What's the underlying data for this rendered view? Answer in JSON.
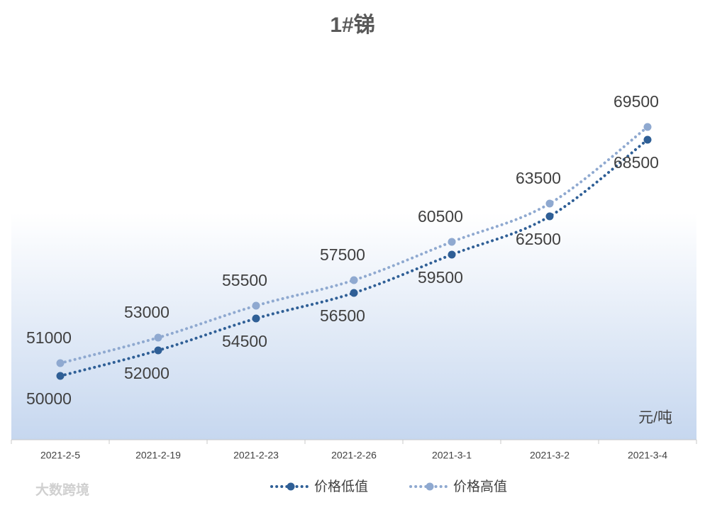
{
  "chart_data": {
    "type": "line",
    "title": "1#锑",
    "categories": [
      "2021-2-5",
      "2021-2-19",
      "2021-2-23",
      "2021-2-26",
      "2021-3-1",
      "2021-3-2",
      "2021-3-4"
    ],
    "series": [
      {
        "name": "价格低值",
        "color": "#2f5f96",
        "values": [
          50000,
          52000,
          54500,
          56500,
          59500,
          62500,
          68500
        ]
      },
      {
        "name": "价格高值",
        "color": "#8fa9d0",
        "values": [
          51000,
          53000,
          55500,
          57500,
          60500,
          63500,
          69500
        ]
      }
    ],
    "ylim": [
      45000,
      75000
    ],
    "unit_label": "元/吨",
    "watermark": "大数跨境",
    "legend": "bottom"
  }
}
